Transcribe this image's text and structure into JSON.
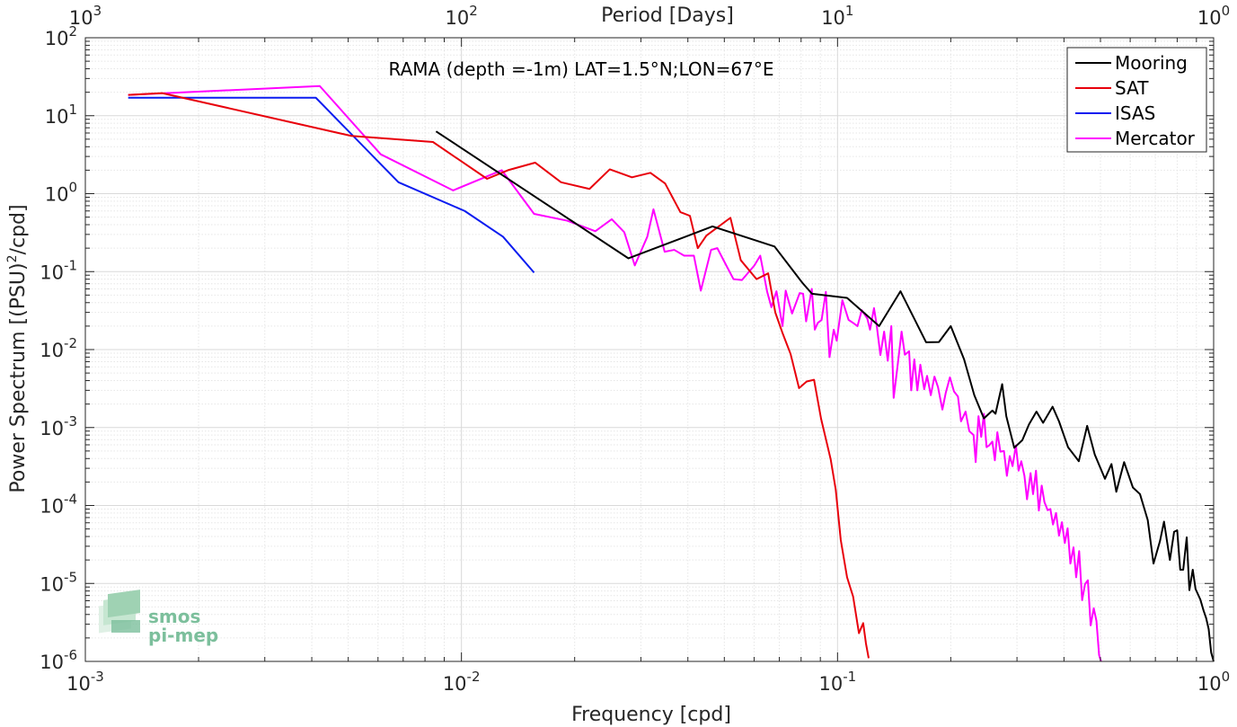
{
  "chart_data": {
    "type": "line",
    "title": "",
    "annotation": "RAMA (depth =-1m) LAT=1.5°N;LON=67°E",
    "xlabel": "Frequency [cpd]",
    "ylabel_main": "Power Spectrum [(PSU)",
    "ylabel_sup": "2",
    "ylabel_tail": "/cpd]",
    "top_xlabel": "Period [Days]",
    "xscale": "log",
    "yscale": "log",
    "xlim": [
      0.001,
      1
    ],
    "ylim": [
      1e-06,
      100
    ],
    "grid": true,
    "legend_location": "top-right",
    "x_ticks": [
      {
        "value": 0.001,
        "base": "10",
        "exp": "-3"
      },
      {
        "value": 0.01,
        "base": "10",
        "exp": "-2"
      },
      {
        "value": 0.1,
        "base": "10",
        "exp": "-1"
      },
      {
        "value": 1,
        "base": "10",
        "exp": "0"
      }
    ],
    "top_ticks": [
      {
        "freq": 0.001,
        "base": "10",
        "exp": "3"
      },
      {
        "freq": 0.01,
        "base": "10",
        "exp": "2"
      },
      {
        "freq": 0.1,
        "base": "10",
        "exp": "1"
      },
      {
        "freq": 1,
        "base": "10",
        "exp": "0"
      }
    ],
    "y_ticks": [
      {
        "value": 100,
        "base": "10",
        "exp": "2"
      },
      {
        "value": 10,
        "base": "10",
        "exp": "1"
      },
      {
        "value": 1,
        "base": "10",
        "exp": "0"
      },
      {
        "value": 0.1,
        "base": "10",
        "exp": "-1"
      },
      {
        "value": 0.01,
        "base": "10",
        "exp": "-2"
      },
      {
        "value": 0.001,
        "base": "10",
        "exp": "-3"
      },
      {
        "value": 0.0001,
        "base": "10",
        "exp": "-4"
      },
      {
        "value": 1e-05,
        "base": "10",
        "exp": "-5"
      },
      {
        "value": 1e-06,
        "base": "10",
        "exp": "-6"
      }
    ],
    "series": [
      {
        "name": "Mooring",
        "color": "#000000",
        "points": [
          [
            0.00856,
            6.3
          ],
          [
            0.0278,
            0.148
          ],
          [
            0.0465,
            0.38
          ],
          [
            0.068,
            0.21
          ],
          [
            0.0806,
            0.072
          ],
          [
            0.0855,
            0.052
          ],
          [
            0.106,
            0.046
          ],
          [
            0.129,
            0.02
          ],
          [
            0.147,
            0.056
          ],
          [
            0.172,
            0.0124
          ],
          [
            0.186,
            0.0125
          ],
          [
            0.2,
            0.02
          ],
          [
            0.217,
            0.0075
          ],
          [
            0.231,
            0.0026
          ],
          [
            0.245,
            0.00131
          ],
          [
            0.258,
            0.00165
          ],
          [
            0.263,
            0.0015
          ],
          [
            0.274,
            0.0036
          ],
          [
            0.281,
            0.0014
          ],
          [
            0.295,
            0.00055
          ],
          [
            0.31,
            0.00069
          ],
          [
            0.323,
            0.0011
          ],
          [
            0.338,
            0.0016
          ],
          [
            0.352,
            0.00115
          ],
          [
            0.373,
            0.00185
          ],
          [
            0.388,
            0.0012
          ],
          [
            0.41,
            0.00056
          ],
          [
            0.438,
            0.00037
          ],
          [
            0.461,
            0.00105
          ],
          [
            0.483,
            0.00045
          ],
          [
            0.514,
            0.00022
          ],
          [
            0.535,
            0.00034
          ],
          [
            0.551,
            0.00015
          ],
          [
            0.578,
            0.00036
          ],
          [
            0.61,
            0.00017
          ],
          [
            0.637,
            0.00014
          ],
          [
            0.668,
            6.5e-05
          ],
          [
            0.692,
            1.8e-05
          ],
          [
            0.72,
            3.5e-05
          ],
          [
            0.738,
            6.2e-05
          ],
          [
            0.765,
            2e-05
          ],
          [
            0.785,
            4.6e-05
          ],
          [
            0.8,
            4.8e-05
          ],
          [
            0.815,
            1.5e-05
          ],
          [
            0.83,
            1.5e-05
          ],
          [
            0.848,
            3.9e-05
          ],
          [
            0.862,
            8.2e-06
          ],
          [
            0.88,
            1.5e-05
          ],
          [
            0.895,
            8.5e-06
          ],
          [
            0.922,
            6.2e-06
          ],
          [
            0.94,
            4.5e-06
          ],
          [
            0.955,
            3.6e-06
          ],
          [
            0.97,
            2.6e-06
          ],
          [
            0.985,
            1.3e-06
          ],
          [
            1.0,
            1e-06
          ]
        ]
      },
      {
        "name": "SAT",
        "color": "#e8000b",
        "points": [
          [
            0.0013,
            18.5
          ],
          [
            0.0016,
            19.5
          ],
          [
            0.0051,
            5.5
          ],
          [
            0.0084,
            4.6
          ],
          [
            0.0117,
            1.55
          ],
          [
            0.0133,
            2.0
          ],
          [
            0.0157,
            2.5
          ],
          [
            0.0184,
            1.4
          ],
          [
            0.0219,
            1.15
          ],
          [
            0.0248,
            2.05
          ],
          [
            0.0284,
            1.62
          ],
          [
            0.0318,
            1.85
          ],
          [
            0.0348,
            1.35
          ],
          [
            0.0382,
            0.58
          ],
          [
            0.0405,
            0.52
          ],
          [
            0.0425,
            0.2
          ],
          [
            0.0448,
            0.29
          ],
          [
            0.0519,
            0.49
          ],
          [
            0.0553,
            0.14
          ],
          [
            0.0609,
            0.08
          ],
          [
            0.0654,
            0.095
          ],
          [
            0.0683,
            0.03
          ],
          [
            0.0715,
            0.016
          ],
          [
            0.075,
            0.0088
          ],
          [
            0.079,
            0.0032
          ],
          [
            0.0828,
            0.0039
          ],
          [
            0.0866,
            0.0041
          ],
          [
            0.0904,
            0.0013
          ],
          [
            0.093,
            0.00073
          ],
          [
            0.0959,
            0.00039
          ],
          [
            0.0989,
            0.00016
          ],
          [
            0.102,
            3.6e-05
          ],
          [
            0.106,
            1.2e-05
          ],
          [
            0.11,
            6.8e-06
          ],
          [
            0.114,
            2.3e-06
          ],
          [
            0.117,
            3.1e-06
          ],
          [
            0.119,
            1.7e-06
          ],
          [
            0.121,
            1.1e-06
          ]
        ]
      },
      {
        "name": "ISAS",
        "color": "#0b1cf0",
        "points": [
          [
            0.0013,
            17.0
          ],
          [
            0.0041,
            17.0
          ],
          [
            0.0068,
            1.4
          ],
          [
            0.0102,
            0.6
          ],
          [
            0.0129,
            0.28
          ],
          [
            0.0156,
            0.097
          ]
        ]
      },
      {
        "name": "Mercator",
        "color": "#ff00ff",
        "points": [
          [
            0.0013,
            18.5
          ],
          [
            0.0042,
            24.0
          ],
          [
            0.0061,
            3.2
          ],
          [
            0.0095,
            1.1
          ],
          [
            0.0128,
            2.0
          ],
          [
            0.0156,
            0.55
          ],
          [
            0.0191,
            0.45
          ],
          [
            0.0227,
            0.33
          ],
          [
            0.0251,
            0.47
          ],
          [
            0.0271,
            0.32
          ],
          [
            0.0289,
            0.12
          ],
          [
            0.0312,
            0.28
          ],
          [
            0.0324,
            0.63
          ],
          [
            0.0347,
            0.18
          ],
          [
            0.0368,
            0.19
          ],
          [
            0.0391,
            0.16
          ],
          [
            0.0415,
            0.16
          ],
          [
            0.0433,
            0.057
          ],
          [
            0.0461,
            0.19
          ],
          [
            0.0479,
            0.2
          ],
          [
            0.0506,
            0.12
          ],
          [
            0.0529,
            0.08
          ],
          [
            0.0557,
            0.078
          ],
          [
            0.0601,
            0.12
          ],
          [
            0.0623,
            0.16
          ],
          [
            0.065,
            0.055
          ],
          [
            0.0667,
            0.035
          ],
          [
            0.0688,
            0.056
          ],
          [
            0.0714,
            0.02
          ],
          [
            0.0728,
            0.057
          ],
          [
            0.0757,
            0.029
          ],
          [
            0.0793,
            0.053
          ],
          [
            0.081,
            0.052
          ],
          [
            0.0825,
            0.023
          ],
          [
            0.0854,
            0.06
          ],
          [
            0.087,
            0.018
          ],
          [
            0.0886,
            0.022
          ],
          [
            0.0907,
            0.024
          ],
          [
            0.0931,
            0.055
          ],
          [
            0.0952,
            0.008
          ],
          [
            0.0977,
            0.018
          ],
          [
            0.0995,
            0.013
          ],
          [
            0.103,
            0.043
          ],
          [
            0.107,
            0.024
          ],
          [
            0.11,
            0.022
          ],
          [
            0.113,
            0.02
          ],
          [
            0.116,
            0.032
          ],
          [
            0.12,
            0.025
          ],
          [
            0.122,
            0.018
          ],
          [
            0.125,
            0.034
          ],
          [
            0.127,
            0.021
          ],
          [
            0.13,
            0.0085
          ],
          [
            0.133,
            0.017
          ],
          [
            0.136,
            0.0072
          ],
          [
            0.139,
            0.02
          ],
          [
            0.141,
            0.0024
          ],
          [
            0.144,
            0.0055
          ],
          [
            0.148,
            0.017
          ],
          [
            0.151,
            0.0086
          ],
          [
            0.155,
            0.0095
          ],
          [
            0.157,
            0.003
          ],
          [
            0.16,
            0.0075
          ],
          [
            0.163,
            0.003
          ],
          [
            0.166,
            0.0064
          ],
          [
            0.17,
            0.0031
          ],
          [
            0.173,
            0.0046
          ],
          [
            0.177,
            0.0026
          ],
          [
            0.181,
            0.0045
          ],
          [
            0.185,
            0.0033
          ],
          [
            0.19,
            0.0017
          ],
          [
            0.194,
            0.0028
          ],
          [
            0.199,
            0.0044
          ],
          [
            0.204,
            0.0029
          ],
          [
            0.209,
            0.0025
          ],
          [
            0.213,
            0.0012
          ],
          [
            0.219,
            0.0016
          ],
          [
            0.224,
            0.0009
          ],
          [
            0.23,
            0.0008
          ],
          [
            0.233,
            0.00036
          ],
          [
            0.237,
            0.0014
          ],
          [
            0.241,
            0.00076
          ],
          [
            0.245,
            0.0015
          ],
          [
            0.249,
            0.00056
          ],
          [
            0.253,
            0.00059
          ],
          [
            0.258,
            0.00066
          ],
          [
            0.262,
            0.00038
          ],
          [
            0.266,
            0.00087
          ],
          [
            0.271,
            0.00049
          ],
          [
            0.277,
            0.0005
          ],
          [
            0.282,
            0.00024
          ],
          [
            0.287,
            0.00043
          ],
          [
            0.292,
            0.00032
          ],
          [
            0.298,
            0.00059
          ],
          [
            0.303,
            0.00028
          ],
          [
            0.308,
            0.00037
          ],
          [
            0.314,
            0.00024
          ],
          [
            0.319,
            0.00012
          ],
          [
            0.326,
            0.00026
          ],
          [
            0.331,
            0.00014
          ],
          [
            0.337,
            0.00028
          ],
          [
            0.343,
            8.6e-05
          ],
          [
            0.349,
            0.00018
          ],
          [
            0.355,
            0.00011
          ],
          [
            0.362,
            8.7e-05
          ],
          [
            0.368,
            9e-05
          ],
          [
            0.374,
            5.7e-05
          ],
          [
            0.381,
            8e-05
          ],
          [
            0.388,
            4.1e-05
          ],
          [
            0.395,
            6.1e-05
          ],
          [
            0.402,
            3.3e-05
          ],
          [
            0.409,
            5.1e-05
          ],
          [
            0.416,
            1.8e-05
          ],
          [
            0.424,
            2.9e-05
          ],
          [
            0.431,
            1.2e-05
          ],
          [
            0.439,
            2.6e-05
          ],
          [
            0.447,
            6.1e-06
          ],
          [
            0.455,
            9.8e-06
          ],
          [
            0.463,
            1.1e-05
          ],
          [
            0.471,
            2.9e-06
          ],
          [
            0.48,
            4.8e-06
          ],
          [
            0.488,
            3.3e-06
          ],
          [
            0.496,
            1.2e-06
          ],
          [
            0.502,
            1e-06
          ]
        ]
      }
    ]
  },
  "logo": {
    "line1": "smos",
    "line2": "pi-mep"
  }
}
